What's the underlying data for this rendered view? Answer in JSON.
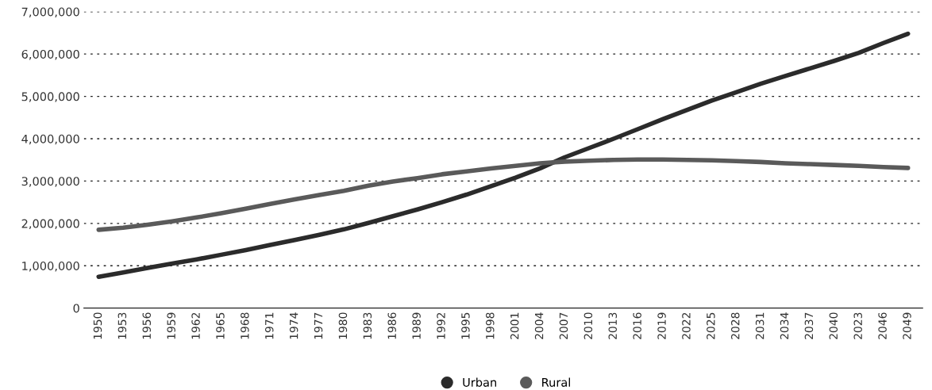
{
  "chart_data": {
    "type": "line",
    "categories": [
      "1950",
      "1953",
      "1956",
      "1959",
      "1962",
      "1965",
      "1968",
      "1971",
      "1974",
      "1977",
      "1980",
      "1983",
      "1986",
      "1989",
      "1992",
      "1995",
      "1998",
      "2001",
      "2004",
      "2007",
      "2010",
      "2013",
      "2016",
      "2019",
      "2022",
      "2025",
      "2028",
      "2031",
      "2034",
      "2037",
      "2040",
      "2023",
      "2046",
      "2049"
    ],
    "series": [
      {
        "name": "Urban",
        "color": "#2b2b2b",
        "values": [
          740000,
          840000,
          950000,
          1050000,
          1150000,
          1260000,
          1370000,
          1490000,
          1610000,
          1730000,
          1860000,
          2010000,
          2170000,
          2330000,
          2500000,
          2680000,
          2880000,
          3080000,
          3300000,
          3560000,
          3780000,
          4000000,
          4230000,
          4460000,
          4680000,
          4900000,
          5100000,
          5300000,
          5480000,
          5660000,
          5840000,
          6030000,
          6260000,
          6480000
        ]
      },
      {
        "name": "Rural",
        "color": "#5a5a5a",
        "values": [
          1850000,
          1900000,
          1970000,
          2050000,
          2140000,
          2240000,
          2350000,
          2460000,
          2570000,
          2670000,
          2770000,
          2890000,
          2990000,
          3070000,
          3160000,
          3230000,
          3300000,
          3360000,
          3420000,
          3460000,
          3480000,
          3500000,
          3510000,
          3510000,
          3500000,
          3490000,
          3470000,
          3450000,
          3420000,
          3400000,
          3380000,
          3360000,
          3330000,
          3310000
        ]
      }
    ],
    "ylim": [
      0,
      7000000
    ],
    "yticks": [
      {
        "value": 0,
        "label": "0"
      },
      {
        "value": 1000000,
        "label": "1,000,000"
      },
      {
        "value": 2000000,
        "label": "2,000,000"
      },
      {
        "value": 3000000,
        "label": "3,000,000"
      },
      {
        "value": 4000000,
        "label": "4,000,000"
      },
      {
        "value": 5000000,
        "label": "5,000,000"
      },
      {
        "value": 6000000,
        "label": "6,000,000"
      },
      {
        "value": 7000000,
        "label": "7,000,000"
      }
    ],
    "grid": "y",
    "legend": "bottom",
    "line_style": "solid"
  }
}
